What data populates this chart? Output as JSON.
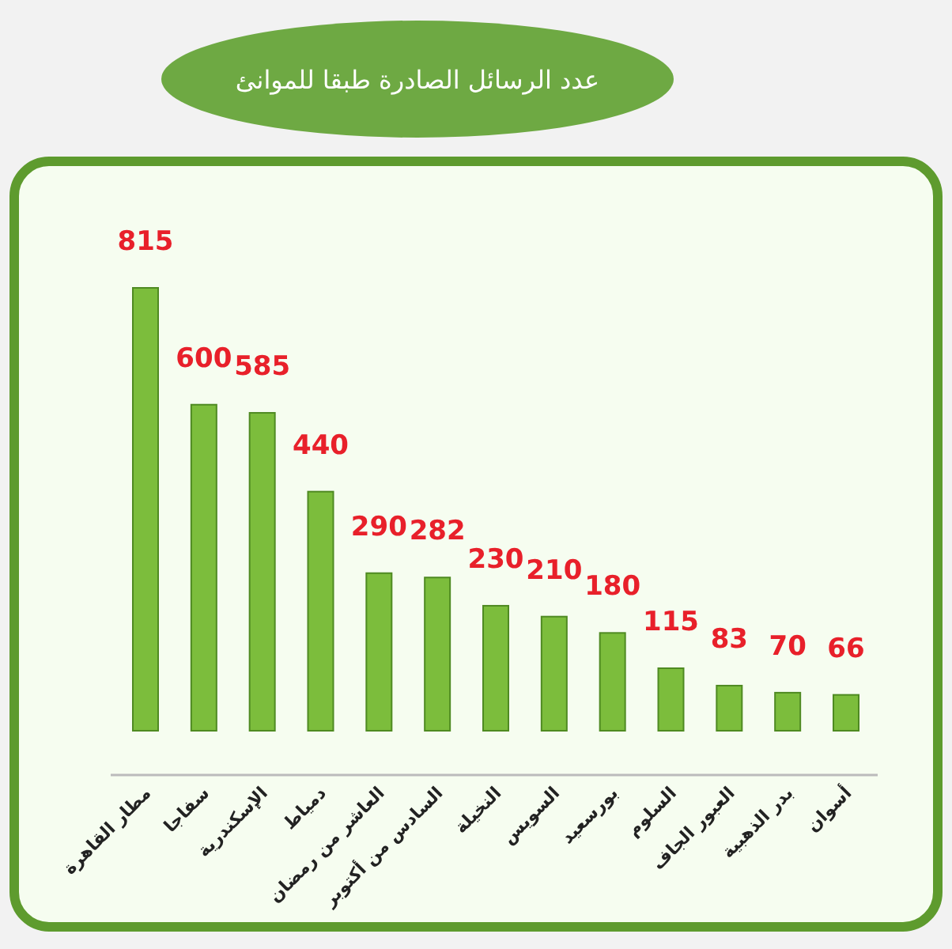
{
  "chart_data": {
    "type": "bar",
    "title": "عدد الرسائل الصادرة طبقا للموانئ",
    "categories": [
      "مطار القاهرة",
      "سفاجا",
      "الإسكندرية",
      "دمياط",
      "العاشر من رمضان",
      "السادس من أكتوبر",
      "النخيلة",
      "السويس",
      "بورسعيد",
      "السلوم",
      "العبور الجاف",
      "بدر الذهبية",
      "أسوان"
    ],
    "values": [
      815,
      600,
      585,
      440,
      290,
      282,
      230,
      210,
      180,
      115,
      83,
      70,
      66
    ],
    "color": "#7cbd3c",
    "data_labels": true
  }
}
